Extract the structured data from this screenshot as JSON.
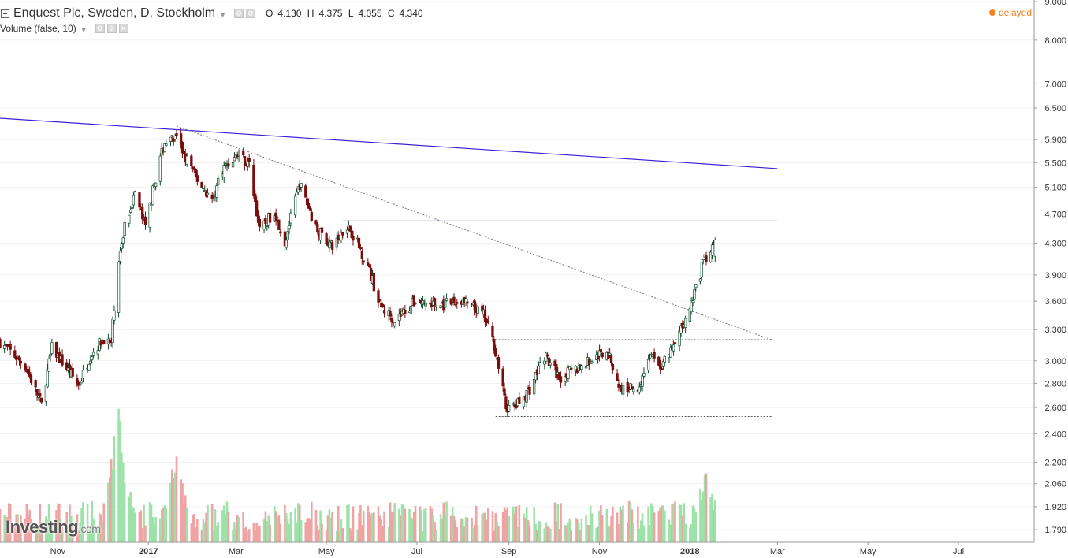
{
  "header": {
    "title": "Enquest Plc, Sweden, D, Stockholm",
    "ohlc": {
      "o_label": "O",
      "o": "4.130",
      "h_label": "H",
      "h": "4.375",
      "l_label": "L",
      "l": "4.055",
      "c_label": "C",
      "c": "4.340"
    },
    "volume_label": "Volume (false, 10)",
    "delayed": "delayed",
    "logo": "Investing",
    "logo_suffix": ".com"
  },
  "colors": {
    "up": "#0d4d2a",
    "up_fill": "#ffffff",
    "down": "#7a0d0d",
    "trendline": "#3b22d6",
    "vol_up": "#9de3a9",
    "vol_down": "#f0a3a3",
    "grid": "#e6e6e6",
    "delayed": "#f5821f"
  },
  "chart_data": {
    "type": "candlestick",
    "title": "Enquest Plc, Sweden, D, Stockholm",
    "yscale": "log",
    "ylim": [
      1.76,
      9.0
    ],
    "y_ticks": [
      "9.000",
      "8.000",
      "7.000",
      "6.500",
      "5.900",
      "5.500",
      "5.100",
      "4.700",
      "4.300",
      "3.900",
      "3.600",
      "3.300",
      "3.000",
      "2.800",
      "2.600",
      "2.400",
      "2.200",
      "2.060",
      "1.920",
      "1.790"
    ],
    "x_ticks": [
      "Nov",
      "2017",
      "Mar",
      "May",
      "Jul",
      "Sep",
      "Nov",
      "2018",
      "Mar",
      "May",
      "Jul"
    ],
    "x_range": [
      "2016-09-23",
      "2018-08-21"
    ],
    "last_close": "2018-01-18",
    "anchors": [
      {
        "date": "2016-09-23",
        "close": 3.18
      },
      {
        "date": "2016-10-10",
        "close": 2.95
      },
      {
        "date": "2016-10-21",
        "close": 2.62
      },
      {
        "date": "2016-10-28",
        "close": 3.12
      },
      {
        "date": "2016-11-15",
        "close": 2.78
      },
      {
        "date": "2016-11-23",
        "close": 3.05
      },
      {
        "date": "2016-12-02",
        "close": 3.22
      },
      {
        "date": "2016-12-07",
        "close": 3.15
      },
      {
        "date": "2016-12-10",
        "close": 3.75
      },
      {
        "date": "2016-12-16",
        "close": 4.55
      },
      {
        "date": "2016-12-23",
        "close": 5.0
      },
      {
        "date": "2016-12-30",
        "close": 4.5
      },
      {
        "date": "2017-01-05",
        "close": 5.15
      },
      {
        "date": "2017-01-12",
        "close": 5.85
      },
      {
        "date": "2017-01-20",
        "close": 5.9
      },
      {
        "date": "2017-02-02",
        "close": 5.25
      },
      {
        "date": "2017-02-13",
        "close": 4.9
      },
      {
        "date": "2017-02-20",
        "close": 5.4
      },
      {
        "date": "2017-03-03",
        "close": 5.65
      },
      {
        "date": "2017-03-10",
        "close": 5.45
      },
      {
        "date": "2017-03-17",
        "close": 4.45
      },
      {
        "date": "2017-03-27",
        "close": 4.75
      },
      {
        "date": "2017-04-03",
        "close": 4.3
      },
      {
        "date": "2017-04-13",
        "close": 5.15
      },
      {
        "date": "2017-04-24",
        "close": 4.5
      },
      {
        "date": "2017-05-05",
        "close": 4.25
      },
      {
        "date": "2017-05-15",
        "close": 4.55
      },
      {
        "date": "2017-05-22",
        "close": 4.3
      },
      {
        "date": "2017-05-30",
        "close": 3.95
      },
      {
        "date": "2017-06-06",
        "close": 3.55
      },
      {
        "date": "2017-06-16",
        "close": 3.4
      },
      {
        "date": "2017-06-30",
        "close": 3.6
      },
      {
        "date": "2017-07-15",
        "close": 3.55
      },
      {
        "date": "2017-08-01",
        "close": 3.6
      },
      {
        "date": "2017-08-15",
        "close": 3.45
      },
      {
        "date": "2017-08-22",
        "close": 3.15
      },
      {
        "date": "2017-08-30",
        "close": 2.6
      },
      {
        "date": "2017-09-05",
        "close": 2.6
      },
      {
        "date": "2017-09-15",
        "close": 2.75
      },
      {
        "date": "2017-09-25",
        "close": 3.05
      },
      {
        "date": "2017-10-05",
        "close": 2.85
      },
      {
        "date": "2017-10-20",
        "close": 2.95
      },
      {
        "date": "2017-11-06",
        "close": 3.1
      },
      {
        "date": "2017-11-15",
        "close": 2.75
      },
      {
        "date": "2017-11-28",
        "close": 2.78
      },
      {
        "date": "2017-12-05",
        "close": 3.05
      },
      {
        "date": "2017-12-13",
        "close": 2.95
      },
      {
        "date": "2017-12-22",
        "close": 3.15
      },
      {
        "date": "2018-01-03",
        "close": 3.6
      },
      {
        "date": "2018-01-10",
        "close": 4.05
      },
      {
        "date": "2018-01-18",
        "close": 4.34
      }
    ],
    "trendlines": [
      {
        "style": "solid",
        "color": "#3b22d6",
        "from": {
          "date": "2016-09-23",
          "price": 6.3
        },
        "to": {
          "date": "2018-03-01",
          "price": 5.4
        }
      },
      {
        "style": "solid",
        "color": "#3b22d6",
        "from": {
          "date": "2017-05-12",
          "price": 4.6
        },
        "to": {
          "date": "2018-03-01",
          "price": 4.6
        }
      },
      {
        "style": "dotted",
        "color": "#777777",
        "from": {
          "date": "2017-01-20",
          "price": 6.15
        },
        "to": {
          "date": "2018-02-25",
          "price": 3.2
        }
      },
      {
        "style": "dotted",
        "color": "#555555",
        "from": {
          "date": "2017-08-23",
          "price": 3.2
        },
        "to": {
          "date": "2018-02-25",
          "price": 3.2
        }
      },
      {
        "style": "dotted",
        "color": "#555555",
        "from": {
          "date": "2017-08-23",
          "price": 2.53
        },
        "to": {
          "date": "2018-02-25",
          "price": 2.53
        }
      }
    ],
    "volume": {
      "pattern": "relative bars",
      "spikes": [
        {
          "date": "2016-12-12",
          "level": 1.0
        },
        {
          "date": "2017-01-19",
          "level": 0.72
        },
        {
          "date": "2018-01-12",
          "level": 0.55
        }
      ]
    }
  }
}
